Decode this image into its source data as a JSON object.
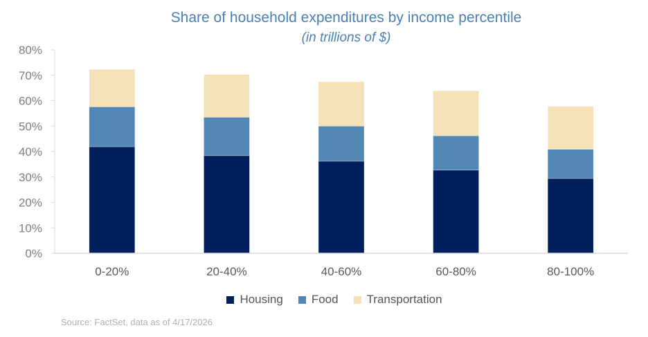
{
  "chart_data": {
    "type": "bar",
    "stacked": true,
    "title": "Share of household expenditures by income percentile",
    "subtitle": "(in trillions of $)",
    "xlabel": "",
    "ylabel": "",
    "categories": [
      "0-20%",
      "20-40%",
      "40-60%",
      "60-80%",
      "80-100%"
    ],
    "series": [
      {
        "name": "Housing",
        "color": "#001f5c",
        "values": [
          41.9,
          38.4,
          36.2,
          32.7,
          29.4
        ]
      },
      {
        "name": "Food",
        "color": "#5287b5",
        "values": [
          15.7,
          15.1,
          13.8,
          13.5,
          11.5
        ]
      },
      {
        "name": "Transportation",
        "color": "#f5e2b8",
        "values": [
          14.7,
          16.8,
          17.5,
          17.7,
          16.9
        ]
      }
    ],
    "ylim": [
      0,
      80
    ],
    "yticks": [
      "0%",
      "10%",
      "20%",
      "30%",
      "40%",
      "50%",
      "60%",
      "70%",
      "80%"
    ],
    "grid": false,
    "legend_position": "bottom",
    "source": "Source: FactSet, data as of 4/17/2026"
  }
}
